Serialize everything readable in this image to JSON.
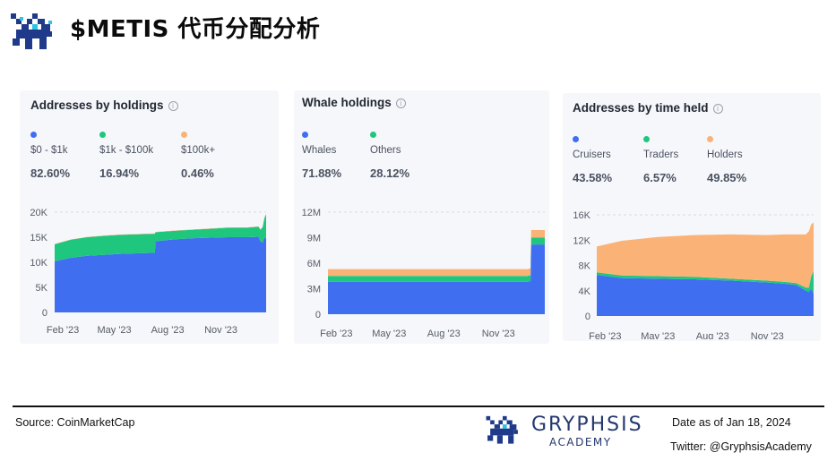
{
  "header": {
    "title": "$METIS 代币分配分析"
  },
  "footer": {
    "source": "Source: CoinMarketCap",
    "date": "Date as of Jan 18, 2024",
    "twitter": "Twitter: @GryphsisAcademy",
    "brand_name": "GRYPHSIS",
    "brand_sub": "ACADEMY"
  },
  "colors": {
    "blue": "#3f6ff0",
    "green": "#1fc77e",
    "orange": "#fbb276"
  },
  "cards": [
    {
      "title": "Addresses by holdings",
      "legend": [
        {
          "label": "$0 - $1k",
          "value": "82.60%",
          "color": "#3f6ff0"
        },
        {
          "label": "$1k - $100k",
          "value": "16.94%",
          "color": "#1fc77e"
        },
        {
          "label": "$100k+",
          "value": "0.46%",
          "color": "#fbb276"
        }
      ]
    },
    {
      "title": "Whale holdings",
      "legend": [
        {
          "label": "Whales",
          "value": "71.88%",
          "color": "#3f6ff0"
        },
        {
          "label": "Others",
          "value": "28.12%",
          "color": "#1fc77e"
        }
      ]
    },
    {
      "title": "Addresses by time held",
      "legend": [
        {
          "label": "Cruisers",
          "value": "43.58%",
          "color": "#3f6ff0"
        },
        {
          "label": "Traders",
          "value": "6.57%",
          "color": "#1fc77e"
        },
        {
          "label": "Holders",
          "value": "49.85%",
          "color": "#fbb276"
        }
      ]
    }
  ],
  "chart_data": [
    {
      "type": "area",
      "stacked": true,
      "x_start": "2023-01-18",
      "x_end": "2024-01-18",
      "xticks": [
        {
          "label": "Feb '23",
          "date": "2023-02-01"
        },
        {
          "label": "May '23",
          "date": "2023-05-01"
        },
        {
          "label": "Aug '23",
          "date": "2023-08-01"
        },
        {
          "label": "Nov '23",
          "date": "2023-11-01"
        }
      ],
      "yticks": [
        {
          "label": "0",
          "value": 0
        },
        {
          "label": "5K",
          "value": 5000
        },
        {
          "label": "10K",
          "value": 10000
        },
        {
          "label": "15K",
          "value": 15000
        },
        {
          "label": "20K",
          "value": 20000
        }
      ],
      "ylim": [
        0,
        20000
      ],
      "x": [
        "2023-01-18",
        "2023-02-15",
        "2023-03-15",
        "2023-04-15",
        "2023-05-15",
        "2023-06-15",
        "2023-07-10",
        "2023-07-11",
        "2023-08-15",
        "2023-09-15",
        "2023-10-15",
        "2023-11-15",
        "2023-12-15",
        "2024-01-05",
        "2024-01-08",
        "2024-01-12",
        "2024-01-15",
        "2024-01-18"
      ],
      "series": [
        {
          "color": "#3f6ff0",
          "values": [
            10200,
            10900,
            11300,
            11500,
            11700,
            11800,
            11900,
            14200,
            14600,
            14800,
            14900,
            15000,
            15000,
            15100,
            14200,
            13900,
            15000,
            14700
          ]
        },
        {
          "color": "#1fc77e",
          "values": [
            3400,
            3600,
            3700,
            3800,
            3800,
            3800,
            3800,
            1800,
            1700,
            1700,
            1800,
            1900,
            1900,
            2000,
            2300,
            3100,
            3800,
            4900
          ]
        },
        {
          "color": "#fbb276",
          "values": [
            60,
            60,
            60,
            60,
            60,
            60,
            60,
            60,
            60,
            60,
            60,
            60,
            60,
            60,
            60,
            60,
            60,
            60
          ]
        }
      ],
      "grid": "top line only",
      "legend_position": "top"
    },
    {
      "type": "area",
      "stacked": true,
      "x_start": "2023-01-18",
      "x_end": "2024-01-18",
      "xticks": [
        {
          "label": "Feb '23",
          "date": "2023-02-01"
        },
        {
          "label": "May '23",
          "date": "2023-05-01"
        },
        {
          "label": "Aug '23",
          "date": "2023-08-01"
        },
        {
          "label": "Nov '23",
          "date": "2023-11-01"
        }
      ],
      "yticks": [
        {
          "label": "0",
          "value": 0
        },
        {
          "label": "3M",
          "value": 3000000
        },
        {
          "label": "6M",
          "value": 6000000
        },
        {
          "label": "9M",
          "value": 9000000
        },
        {
          "label": "12M",
          "value": 12000000
        }
      ],
      "ylim": [
        0,
        12000000
      ],
      "x": [
        "2023-01-18",
        "2023-03-01",
        "2023-05-01",
        "2023-07-01",
        "2023-09-01",
        "2023-11-01",
        "2023-12-20",
        "2023-12-25",
        "2023-12-26",
        "2024-01-18"
      ],
      "series": [
        {
          "color": "#3f6ff0",
          "values": [
            3800000,
            3800000,
            3800000,
            3800000,
            3800000,
            3800000,
            3800000,
            3900000,
            8200000,
            8200000
          ]
        },
        {
          "color": "#1fc77e",
          "values": [
            700000,
            700000,
            700000,
            700000,
            700000,
            700000,
            700000,
            700000,
            800000,
            800000
          ]
        },
        {
          "color": "#fbb276",
          "values": [
            800000,
            800000,
            800000,
            800000,
            800000,
            800000,
            800000,
            800000,
            900000,
            900000
          ]
        }
      ],
      "grid": "top line only",
      "legend_position": "top"
    },
    {
      "type": "area",
      "stacked": true,
      "x_start": "2023-01-18",
      "x_end": "2024-01-18",
      "xticks": [
        {
          "label": "Feb '23",
          "date": "2023-02-01"
        },
        {
          "label": "May '23",
          "date": "2023-05-01"
        },
        {
          "label": "Aug '23",
          "date": "2023-08-01"
        },
        {
          "label": "Nov '23",
          "date": "2023-11-01"
        }
      ],
      "yticks": [
        {
          "label": "0",
          "value": 0
        },
        {
          "label": "4K",
          "value": 4000
        },
        {
          "label": "8K",
          "value": 8000
        },
        {
          "label": "12K",
          "value": 12000
        },
        {
          "label": "16K",
          "value": 16000
        }
      ],
      "ylim": [
        0,
        16000
      ],
      "x": [
        "2023-01-18",
        "2023-03-01",
        "2023-05-01",
        "2023-07-01",
        "2023-09-01",
        "2023-11-01",
        "2023-12-01",
        "2023-12-20",
        "2024-01-05",
        "2024-01-10",
        "2024-01-14",
        "2024-01-18"
      ],
      "series": [
        {
          "color": "#3f6ff0",
          "values": [
            6500,
            6000,
            5900,
            5800,
            5600,
            5300,
            5100,
            4900,
            4000,
            3800,
            4300,
            3600
          ]
        },
        {
          "color": "#1fc77e",
          "values": [
            400,
            400,
            400,
            400,
            300,
            300,
            300,
            300,
            500,
            700,
            2000,
            3500
          ]
        },
        {
          "color": "#fbb276",
          "values": [
            4100,
            5500,
            6200,
            6600,
            7000,
            7200,
            7500,
            7700,
            8400,
            8900,
            8200,
            7700
          ]
        }
      ],
      "grid": "top line only",
      "legend_position": "top"
    }
  ]
}
